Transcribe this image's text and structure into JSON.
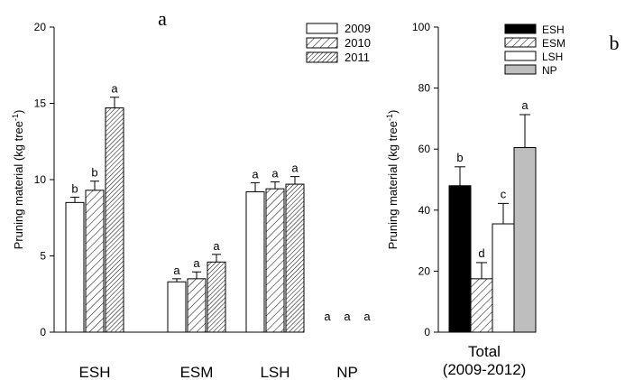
{
  "chart_data": [
    {
      "panel_label": "a",
      "type": "bar",
      "ylabel_main": "Pruning material (kg tree",
      "ylabel_sup": "-1",
      "ylabel_close": ")",
      "ylim": [
        0,
        20
      ],
      "yticks": [
        "0",
        "5",
        "10",
        "15",
        "20"
      ],
      "grid": false,
      "legend_position": "top-right",
      "categories": [
        "ESH",
        "ESM",
        "LSH",
        "NP"
      ],
      "series": [
        {
          "name": "2009",
          "pattern": "none",
          "values": [
            8.5,
            3.3,
            9.2,
            0
          ],
          "errors": [
            0.35,
            0.2,
            0.6,
            0
          ],
          "letters": [
            "b",
            "a",
            "a",
            "a"
          ]
        },
        {
          "name": "2010",
          "pattern": "hatch",
          "values": [
            9.3,
            3.5,
            9.4,
            0
          ],
          "errors": [
            0.6,
            0.45,
            0.45,
            0
          ],
          "letters": [
            "b",
            "a",
            "a",
            "a"
          ]
        },
        {
          "name": "2011",
          "pattern": "dense-hatch",
          "values": [
            14.7,
            4.6,
            9.7,
            0
          ],
          "errors": [
            0.7,
            0.5,
            0.5,
            0
          ],
          "letters": [
            "a",
            "a",
            "a",
            "a"
          ]
        }
      ]
    },
    {
      "panel_label": "b",
      "type": "bar",
      "ylabel_main": "Pruning material (kg tree",
      "ylabel_sup": "-1",
      "ylabel_close": ")",
      "ylim": [
        0,
        100
      ],
      "yticks": [
        "0",
        "20",
        "40",
        "60",
        "80",
        "100"
      ],
      "grid": false,
      "legend_position": "top",
      "xlabel_line1": "Total",
      "xlabel_line2": "(2009-2012)",
      "series": [
        {
          "name": "ESH",
          "color": "#000000",
          "pattern": "solid",
          "value": 48,
          "error": 6.2,
          "letter": "b"
        },
        {
          "name": "ESM",
          "color": "#ffffff",
          "pattern": "hatch",
          "value": 17.5,
          "error": 5.3,
          "letter": "d"
        },
        {
          "name": "LSH",
          "color": "#ffffff",
          "pattern": "none",
          "value": 35.5,
          "error": 6.7,
          "letter": "c"
        },
        {
          "name": "NP",
          "color": "#bebebe",
          "pattern": "solid",
          "value": 60.5,
          "error": 10.8,
          "letter": "a"
        }
      ]
    }
  ]
}
